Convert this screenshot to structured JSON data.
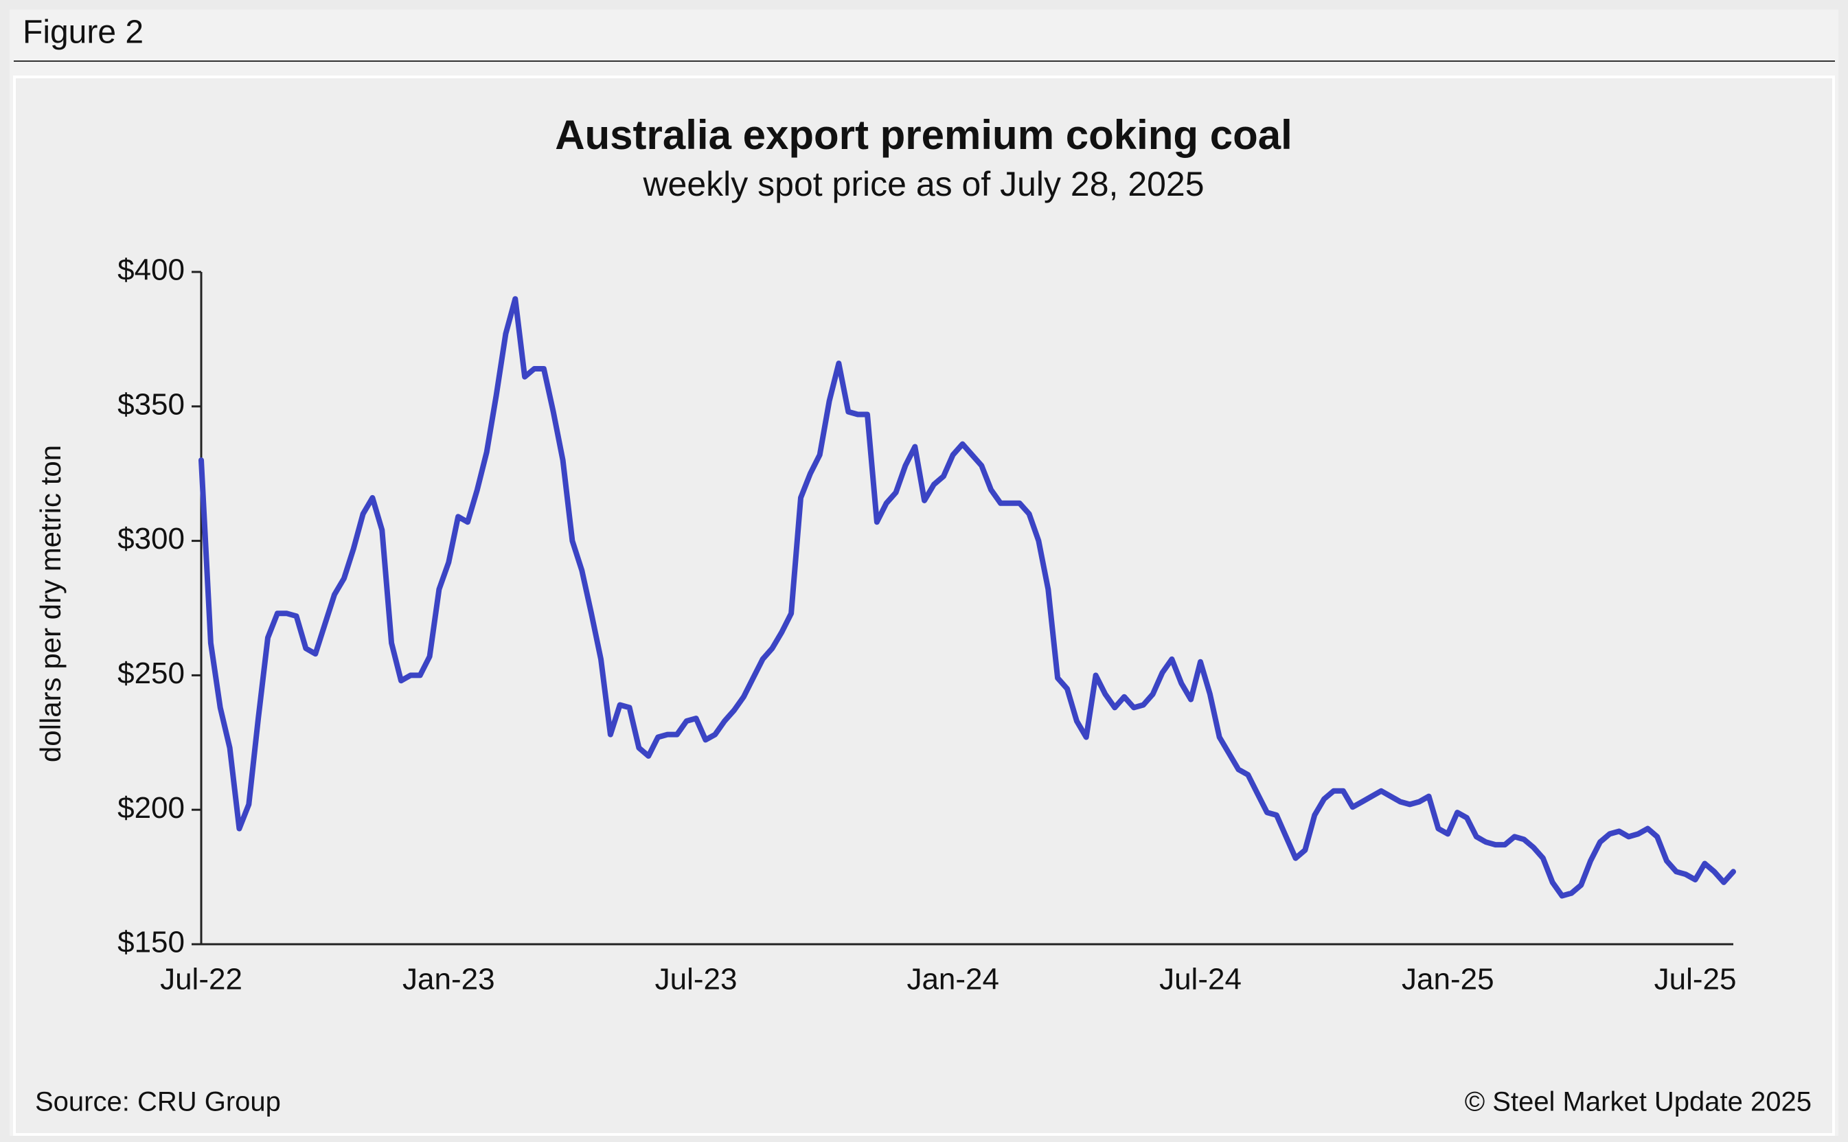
{
  "header": {
    "label": "Figure 2"
  },
  "chart_data": {
    "type": "line",
    "title": "Australia export premium coking coal",
    "subtitle": "weekly spot price as of July 28, 2025",
    "y_label": "dollars per dry metric ton",
    "source": "Source: CRU Group",
    "copyright": "© Steel Market Update 2025",
    "color": "#3b44c4",
    "ylim": [
      150,
      400
    ],
    "yticks": [
      {
        "value": 150,
        "label": "$150"
      },
      {
        "value": 200,
        "label": "$200"
      },
      {
        "value": 250,
        "label": "$250"
      },
      {
        "value": 300,
        "label": "$300"
      },
      {
        "value": 350,
        "label": "$350"
      },
      {
        "value": 400,
        "label": "$400"
      }
    ],
    "categories": [
      "Jul-22",
      null,
      null,
      null,
      null,
      null,
      null,
      null,
      null,
      null,
      null,
      null,
      null,
      null,
      null,
      null,
      null,
      null,
      null,
      null,
      null,
      null,
      null,
      null,
      null,
      null,
      "Jan-23",
      null,
      null,
      null,
      null,
      null,
      null,
      null,
      null,
      null,
      null,
      null,
      null,
      null,
      null,
      null,
      null,
      null,
      null,
      null,
      null,
      null,
      null,
      null,
      null,
      null,
      "Jul-23",
      null,
      null,
      null,
      null,
      null,
      null,
      null,
      null,
      null,
      null,
      null,
      null,
      null,
      null,
      null,
      null,
      null,
      null,
      null,
      null,
      null,
      null,
      null,
      null,
      null,
      null,
      "Jan-24",
      null,
      null,
      null,
      null,
      null,
      null,
      null,
      null,
      null,
      null,
      null,
      null,
      null,
      null,
      null,
      null,
      null,
      null,
      null,
      null,
      null,
      null,
      null,
      null,
      null,
      "Jul-24",
      null,
      null,
      null,
      null,
      null,
      null,
      null,
      null,
      null,
      null,
      null,
      null,
      null,
      null,
      null,
      null,
      null,
      null,
      null,
      null,
      null,
      null,
      null,
      null,
      null,
      "Jan-25",
      null,
      null,
      null,
      null,
      null,
      null,
      null,
      null,
      null,
      null,
      null,
      null,
      null,
      null,
      null,
      null,
      null,
      null,
      null,
      null,
      null,
      null,
      null,
      null,
      null,
      "Jul-25",
      null,
      null,
      null,
      null
    ],
    "values": [
      330,
      262,
      238,
      223,
      193,
      202,
      234,
      264,
      273,
      273,
      272,
      260,
      258,
      269,
      280,
      286,
      297,
      310,
      316,
      304,
      262,
      248,
      250,
      250,
      257,
      282,
      292,
      309,
      307,
      319,
      333,
      354,
      377,
      390,
      361,
      364,
      364,
      348,
      330,
      300,
      289,
      273,
      256,
      228,
      239,
      238,
      223,
      220,
      227,
      228,
      228,
      233,
      234,
      226,
      228,
      233,
      237,
      242,
      249,
      256,
      260,
      266,
      273,
      316,
      325,
      332,
      352,
      366,
      348,
      347,
      347,
      307,
      314,
      318,
      328,
      335,
      315,
      321,
      324,
      332,
      336,
      332,
      328,
      319,
      314,
      314,
      314,
      310,
      300,
      282,
      249,
      245,
      233,
      227,
      250,
      243,
      238,
      242,
      238,
      239,
      243,
      251,
      256,
      247,
      241,
      255,
      243,
      227,
      221,
      215,
      213,
      206,
      199,
      198,
      190,
      182,
      185,
      198,
      204,
      207,
      207,
      201,
      203,
      205,
      207,
      205,
      203,
      202,
      203,
      205,
      193,
      191,
      199,
      197,
      190,
      188,
      187,
      187,
      190,
      189,
      186,
      182,
      173,
      168,
      169,
      172,
      181,
      188,
      191,
      192,
      190,
      191,
      193,
      190,
      181,
      177,
      176,
      174,
      180,
      177,
      173,
      177
    ]
  }
}
